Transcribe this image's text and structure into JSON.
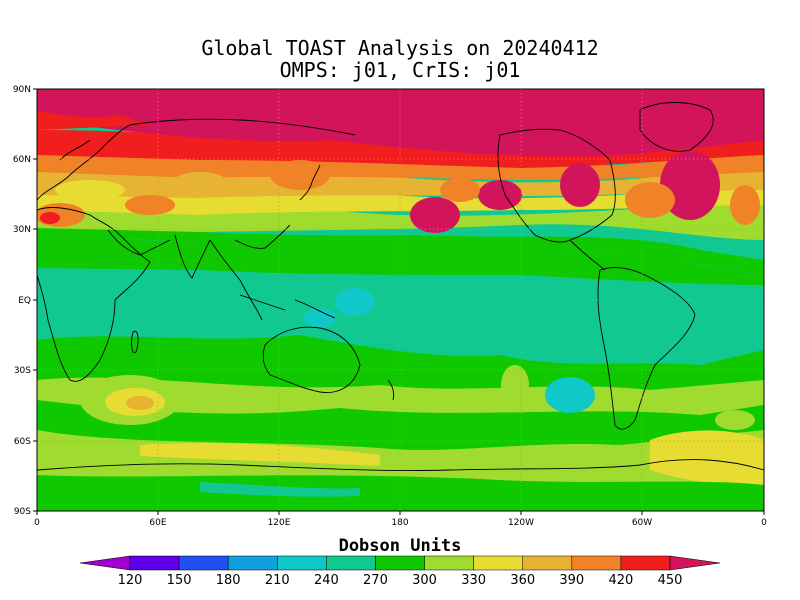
{
  "title": "Global TOAST Analysis on 20240412",
  "subtitle": "OMPS: j01, CrIS: j01",
  "latitude_labels": [
    "90N",
    "60N",
    "30N",
    "EQ",
    "30S",
    "60S",
    "90S"
  ],
  "longitude_labels": [
    "0",
    "60E",
    "120E",
    "180",
    "120W",
    "60W",
    "0"
  ],
  "colorbar": {
    "title": "Dobson Units",
    "ticks": [
      "120",
      "150",
      "180",
      "210",
      "240",
      "270",
      "300",
      "330",
      "360",
      "390",
      "420",
      "450"
    ],
    "colors": [
      "#a000d0",
      "#6000e8",
      "#2050f0",
      "#10a0e0",
      "#10c8c8",
      "#10c890",
      "#10c800",
      "#a0dc30",
      "#e6dc32",
      "#e6b432",
      "#f08228",
      "#f01e1e",
      "#d2145a"
    ]
  },
  "chart_data": {
    "type": "heatmap",
    "title": "Global TOAST Analysis on 20240412",
    "subtitle": "OMPS: j01, CrIS: j01",
    "variable_units": "Dobson Units",
    "projection": "cylindrical equidistant",
    "lon_range": [
      0,
      360
    ],
    "lat_range": [
      -90,
      90
    ],
    "value_range": [
      120,
      450
    ],
    "grid": true,
    "zonal_mean_profile": {
      "lat": [
        90,
        75,
        60,
        50,
        40,
        30,
        20,
        10,
        0,
        -10,
        -20,
        -30,
        -40,
        -50,
        -60,
        -70,
        -80,
        -90
      ],
      "value": [
        455,
        455,
        455,
        400,
        375,
        330,
        300,
        285,
        275,
        275,
        280,
        295,
        320,
        335,
        345,
        330,
        310,
        300
      ]
    }
  }
}
